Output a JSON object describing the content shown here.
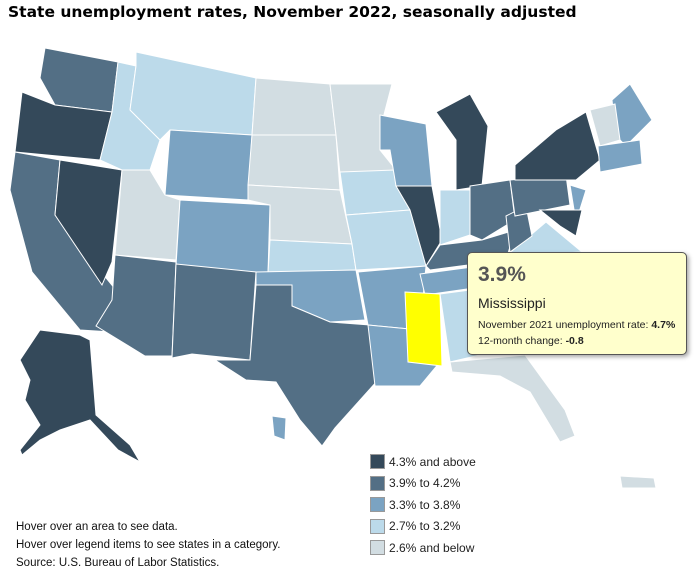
{
  "title": "State unemployment rates, November 2022, seasonally adjusted",
  "colors": {
    "cat0": "#34495a",
    "cat1": "#536f85",
    "cat2": "#7ba3c2",
    "cat3": "#bcdaea",
    "cat4": "#d2dde2",
    "highlight": "#ffff00"
  },
  "legend": [
    {
      "label": "4.3% and above",
      "color": "#34495a"
    },
    {
      "label": "3.9% to 4.2%",
      "color": "#536f85"
    },
    {
      "label": "3.3% to 3.8%",
      "color": "#7ba3c2"
    },
    {
      "label": "2.7% to 3.2%",
      "color": "#bcdaea"
    },
    {
      "label": "2.6% and below",
      "color": "#d2dde2"
    }
  ],
  "tooltip": {
    "value": "3.9%",
    "state": "Mississippi",
    "prior_label": "November 2021 unemployment rate: ",
    "prior_value": "4.7%",
    "change_label": "12-month change: ",
    "change_value": "-0.8"
  },
  "notes": [
    "Hover over an area to see data.",
    "Hover over legend items to see states in a category.",
    "Source: U.S. Bureau of Labor Statistics."
  ],
  "states": [
    {
      "name": "washington",
      "cat": 1
    },
    {
      "name": "oregon",
      "cat": 0
    },
    {
      "name": "california",
      "cat": 1
    },
    {
      "name": "nevada",
      "cat": 0
    },
    {
      "name": "idaho",
      "cat": 3
    },
    {
      "name": "montana",
      "cat": 3
    },
    {
      "name": "wyoming",
      "cat": 2
    },
    {
      "name": "utah",
      "cat": 4
    },
    {
      "name": "colorado",
      "cat": 2
    },
    {
      "name": "arizona",
      "cat": 1
    },
    {
      "name": "new-mexico",
      "cat": 1
    },
    {
      "name": "north-dakota",
      "cat": 4
    },
    {
      "name": "south-dakota",
      "cat": 4
    },
    {
      "name": "nebraska",
      "cat": 4
    },
    {
      "name": "kansas",
      "cat": 3
    },
    {
      "name": "oklahoma",
      "cat": 2
    },
    {
      "name": "texas",
      "cat": 1
    },
    {
      "name": "minnesota",
      "cat": 4
    },
    {
      "name": "iowa",
      "cat": 3
    },
    {
      "name": "missouri",
      "cat": 3
    },
    {
      "name": "arkansas",
      "cat": 2
    },
    {
      "name": "louisiana",
      "cat": 2
    },
    {
      "name": "wisconsin",
      "cat": 2
    },
    {
      "name": "illinois",
      "cat": 0
    },
    {
      "name": "michigan",
      "cat": 0
    },
    {
      "name": "indiana",
      "cat": 3
    },
    {
      "name": "ohio",
      "cat": 1
    },
    {
      "name": "kentucky",
      "cat": 1
    },
    {
      "name": "tennessee",
      "cat": 2
    },
    {
      "name": "mississippi",
      "cat": "highlight"
    },
    {
      "name": "alabama",
      "cat": 3
    },
    {
      "name": "georgia",
      "cat": 4
    },
    {
      "name": "florida",
      "cat": 4
    },
    {
      "name": "south-carolina",
      "cat": 2
    },
    {
      "name": "north-carolina",
      "cat": 2
    },
    {
      "name": "virginia",
      "cat": 3
    },
    {
      "name": "west-virginia",
      "cat": 1
    },
    {
      "name": "pennsylvania",
      "cat": 1
    },
    {
      "name": "new-york",
      "cat": 0
    },
    {
      "name": "new-jersey",
      "cat": 2
    },
    {
      "name": "maryland-delaware",
      "cat": 0
    },
    {
      "name": "maine",
      "cat": 2
    },
    {
      "name": "vermont-new-hampshire",
      "cat": 4
    },
    {
      "name": "massachusetts-connecticut",
      "cat": 2
    },
    {
      "name": "alaska",
      "cat": 0
    },
    {
      "name": "hawaii",
      "cat": 2
    },
    {
      "name": "puerto-rico",
      "cat": 4
    }
  ]
}
